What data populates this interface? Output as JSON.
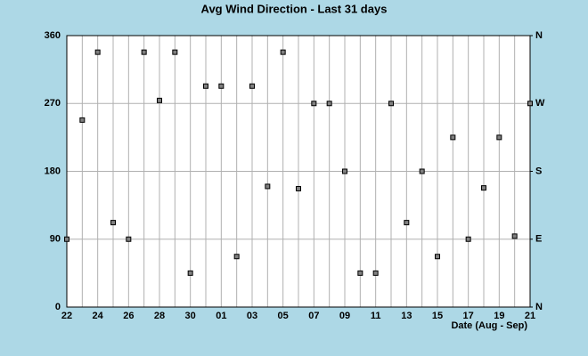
{
  "chart_data": {
    "type": "scatter",
    "title": "Avg Wind Direction - Last 31 days",
    "x_label": "Date (Aug - Sep)",
    "categories": [
      "22",
      null,
      "24",
      null,
      "26",
      null,
      "28",
      null,
      "30",
      null,
      "01",
      null,
      "03",
      null,
      "05",
      null,
      "07",
      null,
      "09",
      null,
      "11",
      null,
      "13",
      null,
      "15",
      null,
      "17",
      null,
      "19",
      null,
      "21"
    ],
    "values": [
      90,
      248,
      338,
      112,
      90,
      338,
      274,
      338,
      45,
      293,
      293,
      67,
      293,
      160,
      338,
      157,
      270,
      270,
      180,
      45,
      45,
      270,
      112,
      180,
      67,
      225,
      90,
      158,
      225,
      94,
      270
    ],
    "color": "#808080",
    "ylim": [
      0,
      360
    ],
    "yticks": [
      0,
      90,
      180,
      270,
      360
    ],
    "y2lim": [
      0,
      360
    ],
    "y2ticks": [
      {
        "value": 0,
        "label": "N"
      },
      {
        "value": 90,
        "label": "E"
      },
      {
        "value": 180,
        "label": "S"
      },
      {
        "value": 270,
        "label": "W"
      },
      {
        "value": 360,
        "label": "N"
      }
    ],
    "grid": true
  }
}
